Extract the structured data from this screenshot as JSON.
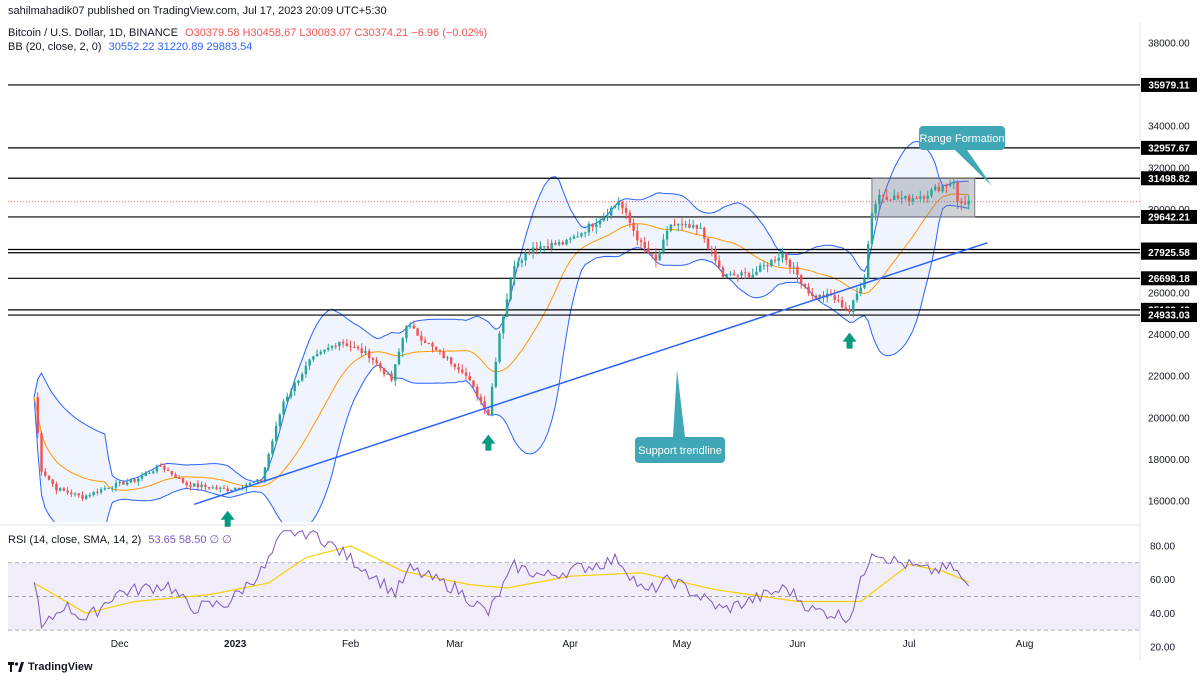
{
  "header": {
    "published": "sahilmahadik07 published on TradingView.com, Jul 17, 2023 20:09 UTC+5:30",
    "symbol": "Bitcoin / U.S. Dollar, 1D, BINANCE",
    "ohlc": "O30379.58 H30458.67 L30083.07 C30374.21 −6.96 (−0.02%)",
    "bb_label": "BB (20, close, 2, 0)",
    "bb_values": "30552.22  31220.89  29883.54",
    "rsi_label": "RSI (14, close, SMA, 14, 2)",
    "rsi_values": "53.65  58.50  ∅  ∅"
  },
  "brand": {
    "text": "TradingView",
    "icon": "tradingview-logo-icon"
  },
  "annotations": {
    "range_label": "Range Formation",
    "support_label": "Support trendline"
  },
  "colors": {
    "up": "#26a69a",
    "down": "#ef5350",
    "bb_band": "#2962ff",
    "bb_basis": "#ff9800",
    "trendline": "#2962ff",
    "rsi_line": "#7e57c2",
    "rsi_sma": "#f5d000",
    "callout": "#3fa7b5",
    "level": "#000000"
  },
  "chart_data": [
    {
      "type": "candlestick",
      "title": "Bitcoin / U.S. Dollar, 1D, BINANCE",
      "ylim": [
        15000,
        39000
      ],
      "y_ticks": [
        "16000.00",
        "18000.00",
        "20000.00",
        "22000.00",
        "24000.00",
        "26000.00",
        "28000.00",
        "30000.00",
        "32000.00",
        "34000.00",
        "36000.00",
        "38000.00"
      ],
      "x_tick_labels": [
        "Dec",
        "2023",
        "Feb",
        "Mar",
        "Apr",
        "May",
        "Jun",
        "Jul",
        "Aug"
      ],
      "horizontal_levels": [
        "35979.11",
        "32957.67",
        "31498.82",
        "29642.21",
        "28078.23",
        "27925.58",
        "26698.18",
        "25183.43",
        "24933.03"
      ],
      "current_price": "30374.21",
      "trendline": {
        "start": {
          "date": "2022-12-21",
          "price": 15850
        },
        "end": {
          "date": "2023-07-22",
          "price": 28400
        }
      },
      "range_box": {
        "date_from": "2023-06-21",
        "date_to": "2023-07-17",
        "price_low": 29642.21,
        "price_high": 31498.82
      },
      "support_arrows": [
        "2022-12-30",
        "2023-03-10",
        "2023-06-15"
      ],
      "price_path": [
        {
          "date": "2022-11-08",
          "close": 21000
        },
        {
          "date": "2022-11-10",
          "close": 17500
        },
        {
          "date": "2022-11-14",
          "close": 16600
        },
        {
          "date": "2022-11-21",
          "close": 16200
        },
        {
          "date": "2022-11-28",
          "close": 16700
        },
        {
          "date": "2022-12-05",
          "close": 17000
        },
        {
          "date": "2022-12-12",
          "close": 17700
        },
        {
          "date": "2022-12-19",
          "close": 16800
        },
        {
          "date": "2022-12-30",
          "close": 16550
        },
        {
          "date": "2023-01-08",
          "close": 17000
        },
        {
          "date": "2023-01-14",
          "close": 20800
        },
        {
          "date": "2023-01-21",
          "close": 22700
        },
        {
          "date": "2023-01-29",
          "close": 23700
        },
        {
          "date": "2023-02-06",
          "close": 23000
        },
        {
          "date": "2023-02-12",
          "close": 21800
        },
        {
          "date": "2023-02-16",
          "close": 24500
        },
        {
          "date": "2023-02-24",
          "close": 23200
        },
        {
          "date": "2023-03-03",
          "close": 22300
        },
        {
          "date": "2023-03-10",
          "close": 20200
        },
        {
          "date": "2023-03-13",
          "close": 24100
        },
        {
          "date": "2023-03-17",
          "close": 27400
        },
        {
          "date": "2023-03-22",
          "close": 28200
        },
        {
          "date": "2023-03-31",
          "close": 28400
        },
        {
          "date": "2023-04-10",
          "close": 29700
        },
        {
          "date": "2023-04-14",
          "close": 30400
        },
        {
          "date": "2023-04-20",
          "close": 28300
        },
        {
          "date": "2023-04-24",
          "close": 27500
        },
        {
          "date": "2023-04-28",
          "close": 29300
        },
        {
          "date": "2023-05-06",
          "close": 29000
        },
        {
          "date": "2023-05-12",
          "close": 26800
        },
        {
          "date": "2023-05-20",
          "close": 26900
        },
        {
          "date": "2023-05-28",
          "close": 27900
        },
        {
          "date": "2023-06-05",
          "close": 25800
        },
        {
          "date": "2023-06-10",
          "close": 25850
        },
        {
          "date": "2023-06-15",
          "close": 25100
        },
        {
          "date": "2023-06-19",
          "close": 26800
        },
        {
          "date": "2023-06-21",
          "close": 29900
        },
        {
          "date": "2023-06-23",
          "close": 30700
        },
        {
          "date": "2023-06-30",
          "close": 30500
        },
        {
          "date": "2023-07-05",
          "close": 30700
        },
        {
          "date": "2023-07-13",
          "close": 31400
        },
        {
          "date": "2023-07-14",
          "close": 30300
        },
        {
          "date": "2023-07-17",
          "close": 30374
        }
      ]
    },
    {
      "type": "line",
      "title": "RSI (14, close, SMA, 14, 2)",
      "ylim": [
        20,
        90
      ],
      "y_ticks": [
        "20.00",
        "40.00",
        "60.00",
        "80.00"
      ],
      "bands": {
        "upper": 70,
        "middle": 50,
        "lower": 30
      },
      "rsi_path": [
        {
          "date": "2022-11-08",
          "value": 62
        },
        {
          "date": "2022-11-10",
          "value": 30
        },
        {
          "date": "2022-11-16",
          "value": 45
        },
        {
          "date": "2022-11-22",
          "value": 36
        },
        {
          "date": "2022-11-30",
          "value": 52
        },
        {
          "date": "2022-12-14",
          "value": 57
        },
        {
          "date": "2022-12-20",
          "value": 43
        },
        {
          "date": "2022-12-30",
          "value": 46
        },
        {
          "date": "2023-01-09",
          "value": 67
        },
        {
          "date": "2023-01-14",
          "value": 88
        },
        {
          "date": "2023-01-22",
          "value": 88
        },
        {
          "date": "2023-02-05",
          "value": 66
        },
        {
          "date": "2023-02-13",
          "value": 52
        },
        {
          "date": "2023-02-17",
          "value": 66
        },
        {
          "date": "2023-03-01",
          "value": 55
        },
        {
          "date": "2023-03-10",
          "value": 40
        },
        {
          "date": "2023-03-17",
          "value": 68
        },
        {
          "date": "2023-03-25",
          "value": 62
        },
        {
          "date": "2023-04-14",
          "value": 72
        },
        {
          "date": "2023-04-21",
          "value": 52
        },
        {
          "date": "2023-04-28",
          "value": 60
        },
        {
          "date": "2023-05-12",
          "value": 42
        },
        {
          "date": "2023-05-29",
          "value": 55
        },
        {
          "date": "2023-06-05",
          "value": 42
        },
        {
          "date": "2023-06-15",
          "value": 38
        },
        {
          "date": "2023-06-21",
          "value": 78
        },
        {
          "date": "2023-06-27",
          "value": 71
        },
        {
          "date": "2023-07-06",
          "value": 65
        },
        {
          "date": "2023-07-13",
          "value": 67
        },
        {
          "date": "2023-07-17",
          "value": 54
        }
      ],
      "rsi_sma_path": [
        {
          "date": "2022-11-08",
          "value": 58
        },
        {
          "date": "2022-11-22",
          "value": 40
        },
        {
          "date": "2022-12-05",
          "value": 47
        },
        {
          "date": "2022-12-25",
          "value": 51
        },
        {
          "date": "2023-01-10",
          "value": 58
        },
        {
          "date": "2023-01-20",
          "value": 73
        },
        {
          "date": "2023-02-01",
          "value": 80
        },
        {
          "date": "2023-02-15",
          "value": 65
        },
        {
          "date": "2023-03-05",
          "value": 57
        },
        {
          "date": "2023-03-15",
          "value": 55
        },
        {
          "date": "2023-04-01",
          "value": 62
        },
        {
          "date": "2023-04-20",
          "value": 64
        },
        {
          "date": "2023-05-10",
          "value": 54
        },
        {
          "date": "2023-06-01",
          "value": 47
        },
        {
          "date": "2023-06-18",
          "value": 47
        },
        {
          "date": "2023-07-01",
          "value": 69
        },
        {
          "date": "2023-07-10",
          "value": 65
        },
        {
          "date": "2023-07-17",
          "value": 58.5
        }
      ]
    }
  ]
}
